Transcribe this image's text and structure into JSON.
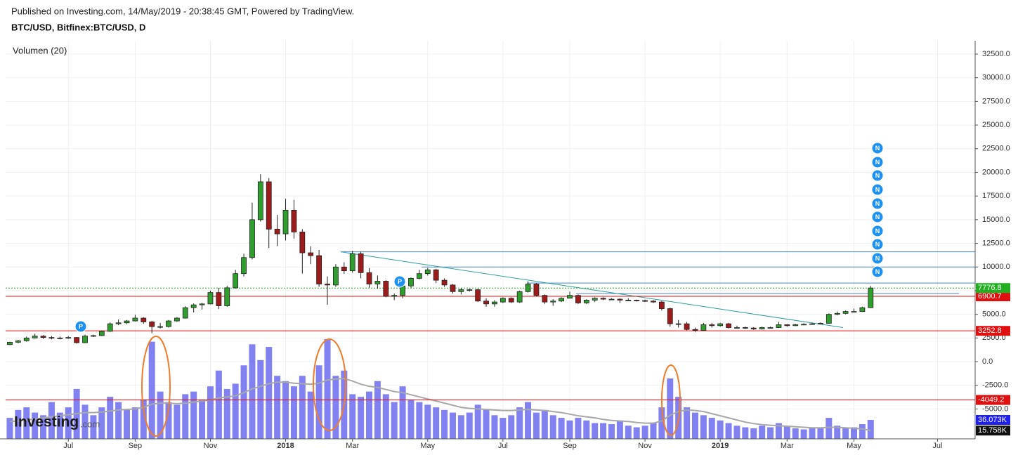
{
  "header": {
    "published": "Published on Investing.com, 14/May/2019 - 20:38:45 GMT, Powered by TradingView.",
    "symbol": "BTC/USD, Bitfinex:BTC/USD, D"
  },
  "chart_data": {
    "type": "candlestick",
    "categories": [
      null,
      null,
      null,
      null,
      null,
      null,
      null,
      "Jul",
      null,
      null,
      null,
      null,
      null,
      null,
      null,
      "Sep",
      null,
      null,
      null,
      null,
      null,
      null,
      null,
      null,
      "Nov",
      null,
      null,
      null,
      null,
      null,
      null,
      null,
      null,
      "2018",
      null,
      null,
      null,
      null,
      null,
      null,
      null,
      "Mar",
      null,
      null,
      null,
      null,
      null,
      null,
      null,
      null,
      "May",
      null,
      null,
      null,
      null,
      null,
      null,
      null,
      null,
      "Jul",
      null,
      null,
      null,
      null,
      null,
      null,
      null,
      "Sep",
      null,
      null,
      null,
      null,
      null,
      null,
      null,
      null,
      "Nov",
      null,
      null,
      null,
      null,
      null,
      null,
      null,
      null,
      "2019",
      null,
      null,
      null,
      null,
      null,
      null,
      null,
      "Mar",
      null,
      null,
      null,
      null,
      null,
      null,
      null,
      "May",
      null,
      null,
      null,
      null,
      null,
      null,
      null,
      null,
      null,
      "Jul",
      null,
      null,
      null,
      null
    ],
    "open": [
      1800,
      2050,
      2200,
      2500,
      2700,
      2550,
      2500,
      2500,
      2550,
      2000,
      2700,
      2750,
      3200,
      4000,
      4100,
      4300,
      4600,
      4200,
      3700,
      3700,
      4300,
      4600,
      5700,
      6000,
      6100,
      7300,
      5900,
      7800,
      9300,
      11000,
      15000,
      19000,
      14000,
      13500,
      16000,
      13700,
      11500,
      11200,
      8200,
      8100,
      10000,
      9600,
      11400,
      9400,
      8200,
      8500,
      6900,
      7000,
      8000,
      8800,
      9300,
      9700,
      8600,
      8100,
      7400,
      7600,
      7600,
      6400,
      6100,
      6300,
      6700,
      6300,
      7400,
      8200,
      7000,
      6300,
      6400,
      6700,
      7000,
      6200,
      6500,
      6700,
      6600,
      6600,
      6500,
      6500,
      6450,
      6400,
      6300,
      5600,
      4000,
      4000,
      3400,
      3300,
      3900,
      3800,
      4000,
      3600,
      3600,
      3550,
      3450,
      3600,
      3600,
      3900,
      3800,
      3900,
      3950,
      4000,
      4050,
      5000,
      5100,
      5300,
      5300,
      5700,
      null,
      null,
      null,
      null,
      null,
      null,
      null,
      null,
      null,
      null,
      null,
      null
    ],
    "high": [
      2100,
      2300,
      2650,
      2950,
      2800,
      2700,
      2650,
      2700,
      2600,
      2850,
      2850,
      3300,
      4150,
      4450,
      4400,
      4950,
      4700,
      4300,
      4100,
      4400,
      4700,
      5850,
      6150,
      6200,
      7500,
      7800,
      8000,
      9700,
      11400,
      16800,
      19800,
      19400,
      15500,
      17200,
      17100,
      14000,
      12200,
      11800,
      9000,
      10300,
      10500,
      11700,
      11600,
      9900,
      9100,
      8600,
      7200,
      8200,
      8900,
      9700,
      9900,
      9800,
      8800,
      8200,
      7800,
      7700,
      7700,
      6700,
      6500,
      6800,
      6800,
      7500,
      8500,
      8300,
      7100,
      6600,
      6800,
      7400,
      7100,
      6600,
      6800,
      6800,
      6700,
      6700,
      6700,
      6550,
      6550,
      6500,
      6400,
      5700,
      4400,
      4200,
      3600,
      4100,
      4100,
      4100,
      4100,
      3800,
      3700,
      3650,
      3700,
      3700,
      4200,
      3950,
      4000,
      4050,
      4100,
      4150,
      5100,
      5300,
      5400,
      5600,
      5800,
      8000,
      null,
      null,
      null,
      null,
      null,
      null,
      null,
      null,
      null,
      null,
      null,
      null
    ],
    "low": [
      1750,
      1950,
      2100,
      2450,
      2400,
      2350,
      2350,
      2400,
      1900,
      1950,
      2600,
      2700,
      3150,
      3850,
      3950,
      4250,
      4000,
      3000,
      3500,
      3600,
      4200,
      4550,
      5200,
      5500,
      6050,
      5550,
      5800,
      7700,
      9000,
      10800,
      14800,
      12000,
      12200,
      12800,
      13000,
      9300,
      10300,
      7900,
      6000,
      7900,
      9300,
      9400,
      8800,
      7800,
      7700,
      6800,
      6500,
      6700,
      7800,
      8700,
      9100,
      8300,
      7900,
      7200,
      7100,
      7400,
      6300,
      5800,
      5800,
      6200,
      6200,
      6200,
      7300,
      6900,
      6100,
      5900,
      6300,
      6700,
      6100,
      6100,
      6300,
      6500,
      6500,
      6200,
      6400,
      6350,
      6300,
      6200,
      5400,
      3700,
      3600,
      3300,
      3150,
      3250,
      3600,
      3700,
      3500,
      3500,
      3450,
      3350,
      3400,
      3500,
      3550,
      3700,
      3750,
      3850,
      3900,
      3950,
      4000,
      4900,
      5000,
      5200,
      5250,
      5650,
      null,
      null,
      null,
      null,
      null,
      null,
      null,
      null,
      null,
      null,
      null,
      null
    ],
    "close": [
      2050,
      2200,
      2500,
      2700,
      2550,
      2500,
      2500,
      2550,
      2000,
      2700,
      2750,
      3200,
      4000,
      4100,
      4300,
      4600,
      4200,
      3700,
      3700,
      4300,
      4600,
      5700,
      6000,
      6100,
      7300,
      5900,
      7800,
      9300,
      11000,
      15000,
      19000,
      14000,
      13500,
      16000,
      13700,
      11500,
      11200,
      8200,
      8100,
      10000,
      9600,
      11400,
      9400,
      8200,
      8500,
      6900,
      7000,
      8000,
      8800,
      9300,
      9700,
      8600,
      8100,
      7400,
      7600,
      7600,
      6400,
      6100,
      6300,
      6700,
      6300,
      7400,
      8200,
      7000,
      6300,
      6400,
      6700,
      7000,
      6200,
      6500,
      6700,
      6600,
      6600,
      6500,
      6500,
      6450,
      6400,
      6300,
      5600,
      4000,
      4000,
      3400,
      3300,
      3900,
      3800,
      4000,
      3600,
      3600,
      3550,
      3450,
      3600,
      3600,
      3900,
      3800,
      3900,
      3950,
      4000,
      4050,
      5000,
      5100,
      5300,
      5300,
      5700,
      7780,
      null,
      null,
      null,
      null,
      null,
      null,
      null,
      null,
      null,
      null,
      null,
      null
    ],
    "up_color": "#2f9e2f",
    "down_color": "#9e1b1b",
    "ylim": [
      -8160,
      33910
    ],
    "yticks": [
      {
        "value": -5000,
        "label": "-5000.0"
      },
      {
        "value": -2500,
        "label": "-2500.0"
      },
      {
        "value": 0,
        "label": "0.0"
      },
      {
        "value": 2500,
        "label": "2500.0"
      },
      {
        "value": 5000,
        "label": "5000.0"
      },
      {
        "value": 7500,
        "label": "7500.0"
      },
      {
        "value": 10000,
        "label": "10000.0"
      },
      {
        "value": 12500,
        "label": "12500.0"
      },
      {
        "value": 15000,
        "label": "15000.0"
      },
      {
        "value": 17500,
        "label": "17500.0"
      },
      {
        "value": 20000,
        "label": "20000.0"
      },
      {
        "value": 22500,
        "label": "22500.0"
      },
      {
        "value": 25000,
        "label": "25000.0"
      },
      {
        "value": 27500,
        "label": "27500.0"
      },
      {
        "value": 30000,
        "label": "30000.0"
      },
      {
        "value": 32500,
        "label": "32500.0"
      }
    ],
    "y2lim": [
      0,
      758000
    ],
    "grid": true,
    "volume": {
      "label": "Volumen (20)",
      "color": "#6b6bf0",
      "axis": "y2",
      "values": [
        40000,
        55000,
        60000,
        50000,
        45000,
        70000,
        50000,
        60000,
        95000,
        65000,
        45000,
        60000,
        80000,
        70000,
        55000,
        60000,
        75000,
        185000,
        90000,
        70000,
        65000,
        85000,
        90000,
        75000,
        100000,
        130000,
        95000,
        105000,
        140000,
        180000,
        150000,
        175000,
        120000,
        110000,
        100000,
        120000,
        90000,
        140000,
        190000,
        120000,
        130000,
        85000,
        80000,
        90000,
        110000,
        85000,
        70000,
        100000,
        75000,
        70000,
        65000,
        60000,
        55000,
        50000,
        45000,
        50000,
        65000,
        55000,
        45000,
        40000,
        45000,
        60000,
        70000,
        50000,
        55000,
        45000,
        40000,
        35000,
        40000,
        35000,
        30000,
        30000,
        28000,
        35000,
        25000,
        22000,
        25000,
        30000,
        60000,
        115000,
        80000,
        60000,
        50000,
        45000,
        40000,
        35000,
        30000,
        25000,
        22000,
        20000,
        25000,
        22000,
        30000,
        25000,
        20000,
        18000,
        22000,
        20000,
        40000,
        25000,
        20000,
        22000,
        28000,
        36073,
        null,
        null,
        null,
        null,
        null,
        null,
        null,
        null,
        null,
        null,
        null,
        null
      ]
    },
    "volume_ma": {
      "color": "#a8a8a8",
      "axis": "y2",
      "values": [
        33000,
        34000,
        36000,
        38000,
        40000,
        42000,
        44000,
        46000,
        48000,
        50000,
        50000,
        51000,
        53000,
        55000,
        56000,
        57000,
        60000,
        66000,
        68000,
        68000,
        67000,
        68000,
        70000,
        72000,
        74000,
        78000,
        80000,
        82000,
        88000,
        95000,
        100000,
        105000,
        108000,
        108000,
        106000,
        105000,
        104000,
        106000,
        112000,
        114000,
        115000,
        110000,
        104000,
        100000,
        98000,
        94000,
        90000,
        88000,
        84000,
        80000,
        76000,
        72000,
        68000,
        64000,
        60000,
        58000,
        57000,
        56000,
        55000,
        54000,
        54000,
        55000,
        56000,
        55000,
        54000,
        52000,
        50000,
        47000,
        44000,
        42000,
        40000,
        37000,
        35000,
        34000,
        33000,
        31000,
        30000,
        30000,
        34000,
        45000,
        52000,
        55000,
        54000,
        52000,
        48000,
        44000,
        40000,
        36000,
        32000,
        29000,
        27000,
        26000,
        25000,
        24000,
        23000,
        22000,
        21000,
        21000,
        22000,
        22000,
        21000,
        20000,
        19000,
        15758,
        null,
        null,
        null,
        null,
        null,
        null,
        null,
        null,
        null,
        null,
        null,
        null
      ]
    },
    "last_volume": {
      "value": 36073,
      "label": "36.073K",
      "color": "#1f1ff0"
    },
    "last_volume_ma": {
      "value": 15758,
      "label": "15.758K",
      "color": "#111111"
    },
    "levels": [
      6900.7,
      3252.8,
      -4049.2
    ],
    "level_color": "#e01010",
    "last_price": 7776.8,
    "last_price_color": "#22b022",
    "horizontal_lines": [
      11600,
      10000,
      8300,
      7200
    ],
    "horizontal_line_color": "#4a86c8",
    "trendline": [
      11600,
      3600
    ],
    "trendline_color": "#2a9d9d",
    "event_labels": [
      "P",
      "P",
      "N",
      "N",
      "N",
      "N",
      "N",
      "N",
      "N",
      "N",
      "N",
      "N"
    ],
    "logo": "Investing",
    "logo_suffix": ".com"
  }
}
